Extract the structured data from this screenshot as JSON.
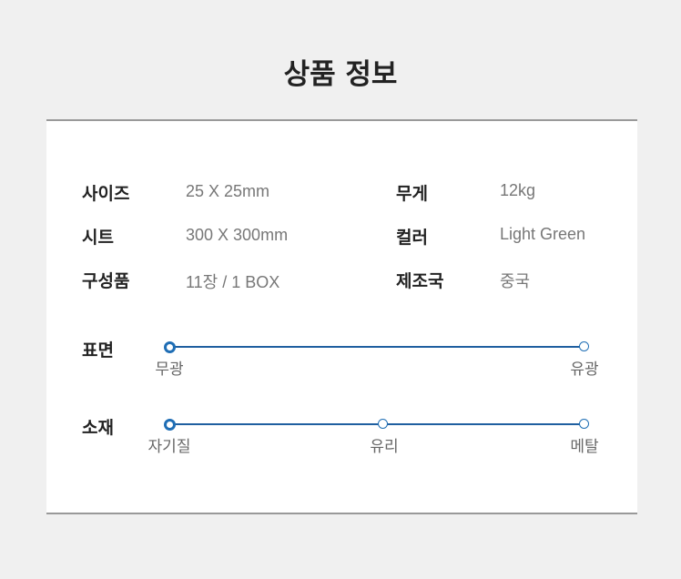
{
  "title": "상품 정보",
  "specs": [
    {
      "label": "사이즈",
      "value": "25 X 25mm"
    },
    {
      "label": "무게",
      "value": "12kg"
    },
    {
      "label": "시트",
      "value": "300 X 300mm"
    },
    {
      "label": "컬러",
      "value": "Light Green"
    },
    {
      "label": "구성품",
      "value": "11장 / 1 BOX"
    },
    {
      "label": "제조국",
      "value": "중국"
    }
  ],
  "scales": [
    {
      "label": "표면",
      "options": [
        "무광",
        "유광"
      ],
      "selected": "무광"
    },
    {
      "label": "소재",
      "options": [
        "자기질",
        "유리",
        "메탈"
      ],
      "selected": "자기질"
    }
  ],
  "colors": {
    "accent": "#1f6eb5",
    "background": "#f0f0f0"
  }
}
